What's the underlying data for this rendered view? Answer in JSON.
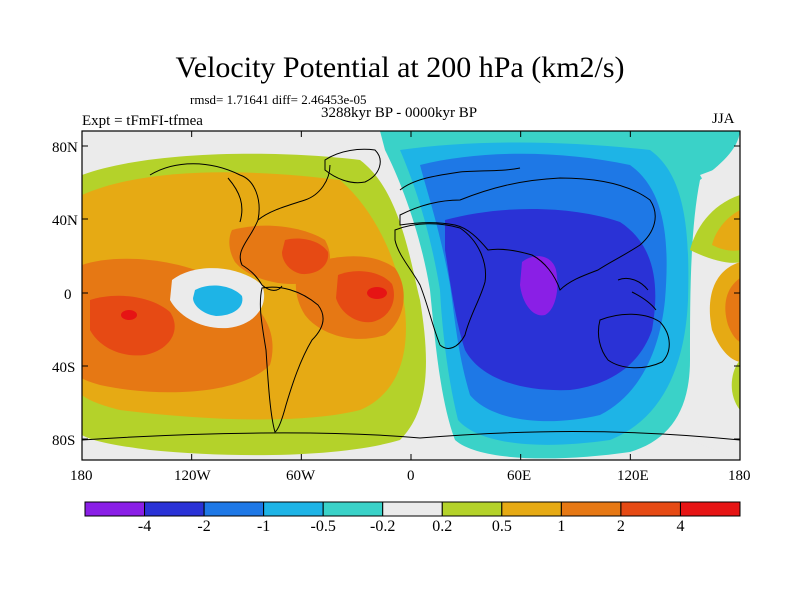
{
  "title": "Velocity Potential at 200 hPa (km2/s)",
  "stats": "rmsd= 1.71641 diff= 2.46453e-05",
  "experiment": "Expt = tFmFI-tfmea",
  "period": "3288kyr BP - 0000kyr BP",
  "season": "JJA",
  "lat_ticks": [
    "80N",
    "40N",
    "0",
    "40S",
    "80S"
  ],
  "lon_ticks": [
    "180",
    "120W",
    "60W",
    "0",
    "60E",
    "120E",
    "180"
  ],
  "colorbar": {
    "labels": [
      "-4",
      "-2",
      "-1",
      "-0.5",
      "-0.2",
      "0.2",
      "0.5",
      "1",
      "2",
      "4"
    ],
    "colors": [
      "#8a1fe6",
      "#2a32d6",
      "#1e78e6",
      "#1eb4e6",
      "#3ad2c8",
      "#ebebeb",
      "#b4d22a",
      "#e6aa14",
      "#e67814",
      "#e64a14",
      "#e61414"
    ]
  }
}
